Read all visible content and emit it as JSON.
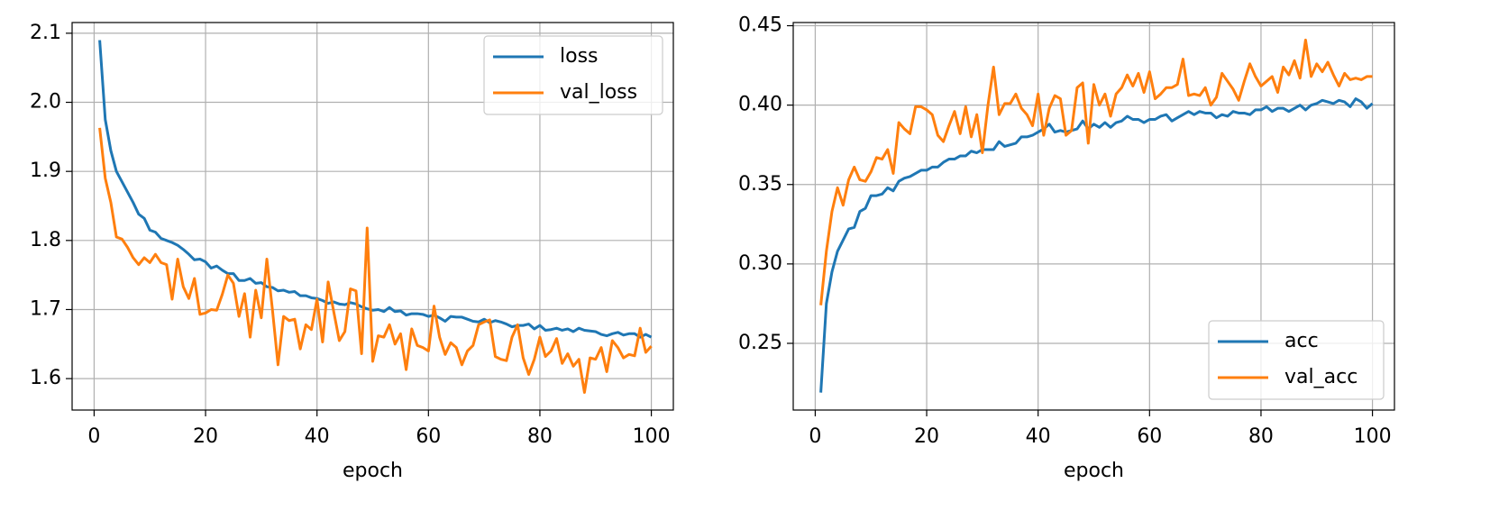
{
  "chart_data": [
    {
      "type": "line",
      "xlabel": "epoch",
      "grid": true,
      "legend": "upper right",
      "x": [
        1,
        2,
        3,
        4,
        5,
        6,
        7,
        8,
        9,
        10,
        11,
        12,
        13,
        14,
        15,
        16,
        17,
        18,
        19,
        20,
        21,
        22,
        23,
        24,
        25,
        26,
        27,
        28,
        29,
        30,
        31,
        32,
        33,
        34,
        35,
        36,
        37,
        38,
        39,
        40,
        41,
        42,
        43,
        44,
        45,
        46,
        47,
        48,
        49,
        50,
        51,
        52,
        53,
        54,
        55,
        56,
        57,
        58,
        59,
        60,
        61,
        62,
        63,
        64,
        65,
        66,
        67,
        68,
        69,
        70,
        71,
        72,
        73,
        74,
        75,
        76,
        77,
        78,
        79,
        80,
        81,
        82,
        83,
        84,
        85,
        86,
        87,
        88,
        89,
        90,
        91,
        92,
        93,
        94,
        95,
        96,
        97,
        98,
        99,
        100
      ],
      "xlim": [
        -3.95,
        103.95
      ],
      "xticks": [
        0,
        20,
        40,
        60,
        80,
        100
      ],
      "ylim": [
        1.5545,
        2.1155
      ],
      "yticks": [
        1.6,
        1.7,
        1.8,
        1.9,
        {
          "value": 2,
          "label": "2.0"
        },
        2.1
      ],
      "series": [
        {
          "name": "loss",
          "color": "#1f77b4",
          "values": [
            2.09,
            1.975,
            1.93,
            1.9,
            1.885,
            1.87,
            1.855,
            1.838,
            1.832,
            1.815,
            1.812,
            1.803,
            1.8,
            1.797,
            1.793,
            1.787,
            1.78,
            1.772,
            1.773,
            1.769,
            1.76,
            1.763,
            1.757,
            1.752,
            1.752,
            1.742,
            1.742,
            1.745,
            1.738,
            1.739,
            1.733,
            1.732,
            1.727,
            1.728,
            1.725,
            1.726,
            1.72,
            1.72,
            1.717,
            1.716,
            1.713,
            1.709,
            1.711,
            1.708,
            1.707,
            1.71,
            1.708,
            1.704,
            1.701,
            1.699,
            1.7,
            1.697,
            1.703,
            1.697,
            1.698,
            1.692,
            1.694,
            1.694,
            1.693,
            1.69,
            1.692,
            1.688,
            1.683,
            1.69,
            1.689,
            1.689,
            1.686,
            1.683,
            1.682,
            1.686,
            1.681,
            1.684,
            1.682,
            1.679,
            1.675,
            1.677,
            1.677,
            1.679,
            1.672,
            1.677,
            1.67,
            1.671,
            1.673,
            1.67,
            1.672,
            1.668,
            1.673,
            1.67,
            1.669,
            1.668,
            1.664,
            1.662,
            1.665,
            1.667,
            1.663,
            1.665,
            1.665,
            1.66,
            1.664,
            1.66
          ]
        },
        {
          "name": "val_loss",
          "color": "#ff7f0e",
          "values": [
            1.963,
            1.89,
            1.855,
            1.805,
            1.802,
            1.79,
            1.775,
            1.765,
            1.775,
            1.768,
            1.78,
            1.768,
            1.765,
            1.715,
            1.773,
            1.733,
            1.716,
            1.745,
            1.693,
            1.695,
            1.7,
            1.699,
            1.722,
            1.75,
            1.738,
            1.69,
            1.723,
            1.66,
            1.728,
            1.688,
            1.773,
            1.7,
            1.62,
            1.69,
            1.684,
            1.686,
            1.643,
            1.678,
            1.671,
            1.715,
            1.653,
            1.74,
            1.697,
            1.655,
            1.668,
            1.73,
            1.727,
            1.636,
            1.818,
            1.625,
            1.662,
            1.66,
            1.678,
            1.65,
            1.665,
            1.613,
            1.672,
            1.648,
            1.645,
            1.64,
            1.705,
            1.66,
            1.635,
            1.652,
            1.645,
            1.62,
            1.64,
            1.648,
            1.678,
            1.682,
            1.685,
            1.632,
            1.628,
            1.626,
            1.66,
            1.678,
            1.63,
            1.606,
            1.628,
            1.66,
            1.632,
            1.64,
            1.658,
            1.622,
            1.636,
            1.618,
            1.628,
            1.58,
            1.63,
            1.628,
            1.645,
            1.61,
            1.655,
            1.645,
            1.63,
            1.635,
            1.633,
            1.673,
            1.638,
            1.647
          ]
        }
      ]
    },
    {
      "type": "line",
      "xlabel": "epoch",
      "grid": true,
      "legend": "lower right",
      "x": [
        1,
        2,
        3,
        4,
        5,
        6,
        7,
        8,
        9,
        10,
        11,
        12,
        13,
        14,
        15,
        16,
        17,
        18,
        19,
        20,
        21,
        22,
        23,
        24,
        25,
        26,
        27,
        28,
        29,
        30,
        31,
        32,
        33,
        34,
        35,
        36,
        37,
        38,
        39,
        40,
        41,
        42,
        43,
        44,
        45,
        46,
        47,
        48,
        49,
        50,
        51,
        52,
        53,
        54,
        55,
        56,
        57,
        58,
        59,
        60,
        61,
        62,
        63,
        64,
        65,
        66,
        67,
        68,
        69,
        70,
        71,
        72,
        73,
        74,
        75,
        76,
        77,
        78,
        79,
        80,
        81,
        82,
        83,
        84,
        85,
        86,
        87,
        88,
        89,
        90,
        91,
        92,
        93,
        94,
        95,
        96,
        97,
        98,
        99,
        100
      ],
      "xlim": [
        -3.95,
        103.95
      ],
      "xticks": [
        0,
        20,
        40,
        60,
        80,
        100
      ],
      "ylim": [
        0.208,
        0.452
      ],
      "yticks": [
        0.25,
        {
          "value": 0.3,
          "label": "0.30"
        },
        0.35,
        {
          "value": 0.4,
          "label": "0.40"
        },
        0.45
      ],
      "series": [
        {
          "name": "acc",
          "color": "#1f77b4",
          "values": [
            0.219,
            0.275,
            0.295,
            0.308,
            0.315,
            0.322,
            0.323,
            0.333,
            0.335,
            0.343,
            0.343,
            0.344,
            0.348,
            0.346,
            0.352,
            0.354,
            0.355,
            0.357,
            0.359,
            0.359,
            0.361,
            0.361,
            0.364,
            0.366,
            0.366,
            0.368,
            0.368,
            0.371,
            0.37,
            0.372,
            0.372,
            0.372,
            0.377,
            0.374,
            0.375,
            0.376,
            0.38,
            0.38,
            0.381,
            0.383,
            0.385,
            0.388,
            0.383,
            0.384,
            0.383,
            0.384,
            0.385,
            0.39,
            0.385,
            0.388,
            0.386,
            0.389,
            0.386,
            0.389,
            0.39,
            0.393,
            0.391,
            0.391,
            0.389,
            0.391,
            0.391,
            0.393,
            0.394,
            0.39,
            0.392,
            0.394,
            0.396,
            0.394,
            0.396,
            0.395,
            0.395,
            0.392,
            0.394,
            0.393,
            0.396,
            0.395,
            0.395,
            0.394,
            0.397,
            0.397,
            0.399,
            0.396,
            0.398,
            0.398,
            0.396,
            0.398,
            0.4,
            0.397,
            0.4,
            0.401,
            0.403,
            0.402,
            0.401,
            0.403,
            0.402,
            0.399,
            0.404,
            0.402,
            0.398,
            0.401
          ]
        },
        {
          "name": "val_acc",
          "color": "#ff7f0e",
          "values": [
            0.274,
            0.308,
            0.333,
            0.348,
            0.337,
            0.353,
            0.361,
            0.353,
            0.352,
            0.358,
            0.367,
            0.366,
            0.372,
            0.357,
            0.389,
            0.385,
            0.382,
            0.399,
            0.399,
            0.397,
            0.394,
            0.381,
            0.377,
            0.387,
            0.396,
            0.382,
            0.399,
            0.38,
            0.394,
            0.37,
            0.4,
            0.424,
            0.394,
            0.401,
            0.401,
            0.407,
            0.398,
            0.394,
            0.387,
            0.407,
            0.381,
            0.398,
            0.406,
            0.404,
            0.381,
            0.384,
            0.411,
            0.414,
            0.376,
            0.413,
            0.4,
            0.407,
            0.393,
            0.407,
            0.411,
            0.419,
            0.412,
            0.42,
            0.408,
            0.421,
            0.404,
            0.407,
            0.411,
            0.411,
            0.413,
            0.429,
            0.406,
            0.407,
            0.406,
            0.411,
            0.4,
            0.405,
            0.42,
            0.415,
            0.41,
            0.403,
            0.415,
            0.426,
            0.418,
            0.412,
            0.415,
            0.418,
            0.408,
            0.424,
            0.419,
            0.428,
            0.417,
            0.441,
            0.418,
            0.426,
            0.421,
            0.427,
            0.419,
            0.412,
            0.42,
            0.416,
            0.417,
            0.416,
            0.418,
            0.418
          ]
        }
      ]
    }
  ]
}
